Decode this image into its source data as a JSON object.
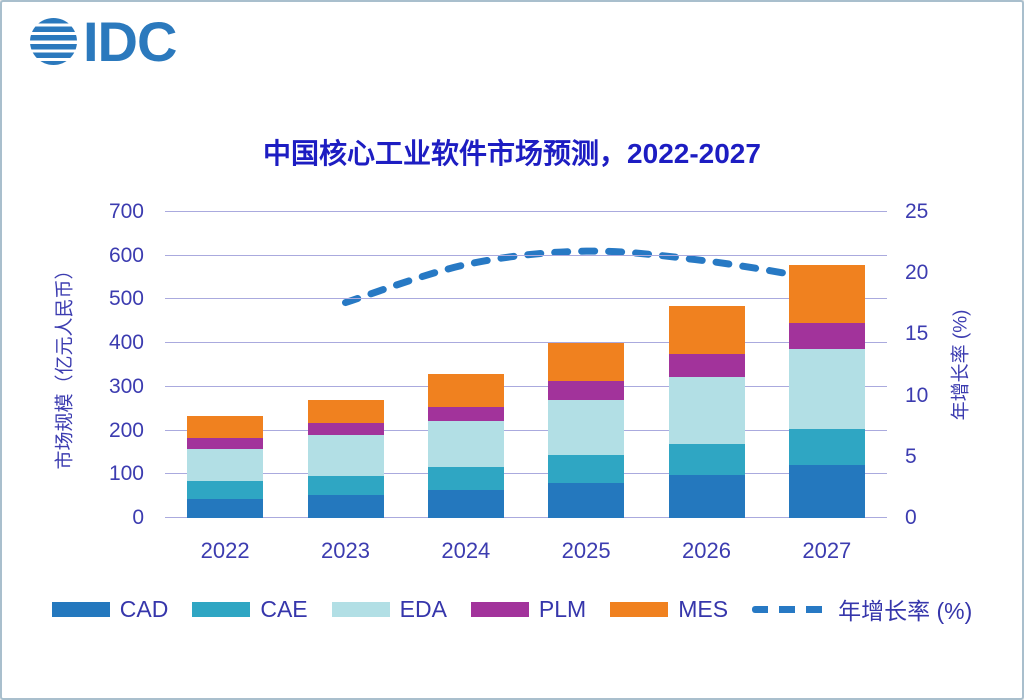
{
  "logo": {
    "text": "IDC"
  },
  "title": "中国核心工业软件市场预测，2022-2027",
  "chart_data": {
    "type": "bar",
    "subtype": "stacked-bars-with-growth-line",
    "title": "中国核心工业软件市场预测，2022-2027",
    "categories": [
      "2022",
      "2023",
      "2024",
      "2025",
      "2026",
      "2027"
    ],
    "series": [
      {
        "name": "CAD",
        "color": "#2478be",
        "values": [
          44,
          52,
          65,
          80,
          98,
          121
        ]
      },
      {
        "name": "CAE",
        "color": "#2fa6c3",
        "values": [
          41,
          43,
          52,
          65,
          72,
          82
        ]
      },
      {
        "name": "EDA",
        "color": "#b2dfe5",
        "values": [
          74,
          96,
          104,
          124,
          153,
          183
        ]
      },
      {
        "name": "PLM",
        "color": "#a2339b",
        "values": [
          25,
          26,
          33,
          44,
          52,
          61
        ]
      },
      {
        "name": "MES",
        "color": "#f0811f",
        "values": [
          49,
          54,
          75,
          87,
          109,
          133
        ]
      }
    ],
    "stack_totals": [
      233,
      271,
      329,
      400,
      484,
      580
    ],
    "line_series": {
      "name": "年增长率 (%)",
      "color": "#2779c4",
      "categories": [
        "2023",
        "2024",
        "2025",
        "2026",
        "2027"
      ],
      "values": [
        17.6,
        20.7,
        21.8,
        21.0,
        19.4
      ]
    },
    "left_axis": {
      "label": "市场规模（亿元人民币）",
      "min": 0,
      "max": 700,
      "ticks": [
        700,
        600,
        500,
        400,
        300,
        200,
        100,
        0
      ]
    },
    "right_axis": {
      "label": "年增长率 (%)",
      "min": 0,
      "max": 25,
      "ticks": [
        25,
        20,
        15,
        10,
        5,
        0
      ]
    },
    "legend": [
      "CAD",
      "CAE",
      "EDA",
      "PLM",
      "MES",
      "年增长率 (%)"
    ],
    "grid": true,
    "legend_position": "bottom"
  },
  "colors": {
    "title_text": "#1d1dc2",
    "axis_text": "#3c3cb0",
    "legend_text": "#3636ab",
    "gridline": "#aaaade",
    "logo_blue": "#2b79bd",
    "background": "#ffffff",
    "frame_border": "#a9bfcd"
  }
}
